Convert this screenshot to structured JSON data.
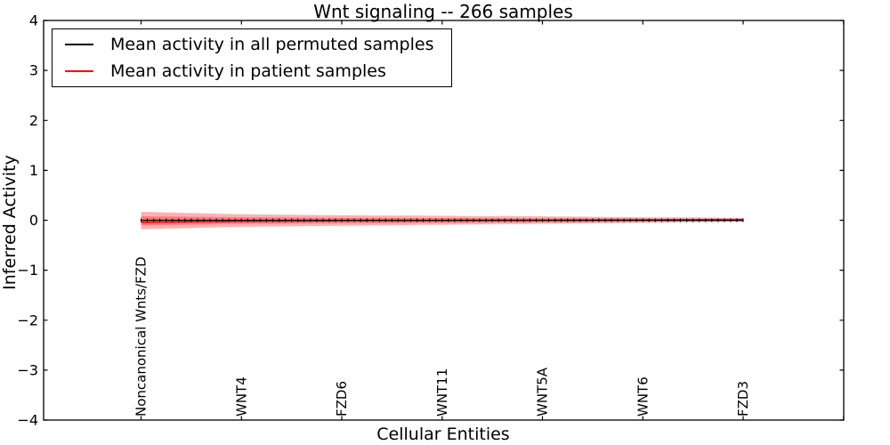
{
  "chart_data": {
    "type": "line",
    "title": "Wnt signaling -- 266 samples",
    "xlabel": "Cellular Entities",
    "ylabel": "Inferred Activity",
    "ylim": [
      -4,
      4
    ],
    "yticks": [
      4,
      3,
      2,
      1,
      0,
      -1,
      -2,
      -3,
      -4
    ],
    "grid": false,
    "n_points": 97,
    "control_indices": [
      0,
      16,
      32,
      48,
      64,
      80,
      96
    ],
    "xticks": {
      "indices": [
        0,
        16,
        32,
        48,
        64,
        80,
        96,
        112
      ],
      "labels": [
        "Noncanonical Wnts/FZD",
        "WNT4",
        "FZD6",
        "WNT11",
        "WNT5A",
        "WNT6",
        "FZD3",
        ""
      ]
    },
    "legend": {
      "position": "upper left",
      "items": [
        {
          "label": "Mean activity in all permuted samples",
          "color": "#000000"
        },
        {
          "label": "Mean activity in patient samples",
          "color": "#ff0000"
        }
      ]
    },
    "series": [
      {
        "name": "Mean activity in all permuted samples",
        "color": "#000000",
        "marker": "|",
        "values_at_controls": [
          0.0,
          0.0,
          0.0,
          0.0,
          0.0,
          0.0,
          0.0
        ]
      },
      {
        "name": "Mean activity in patient samples",
        "color": "#ff0000",
        "marker": null,
        "values_at_controls": [
          -0.04,
          -0.02,
          -0.01,
          -0.005,
          0.0,
          0.005,
          0.01
        ]
      }
    ],
    "bands": [
      {
        "name": "patient-spread-outer",
        "color": "#ff0000",
        "alpha": 0.3,
        "upper_at_controls": [
          0.17,
          0.12,
          0.1,
          0.09,
          0.08,
          0.06,
          0.05
        ],
        "lower_at_controls": [
          -0.18,
          -0.13,
          -0.11,
          -0.09,
          -0.07,
          -0.05,
          -0.03
        ]
      },
      {
        "name": "patient-spread-inner",
        "color": "#ff0000",
        "alpha": 0.3,
        "upper_at_controls": [
          0.08,
          0.06,
          0.05,
          0.045,
          0.04,
          0.035,
          0.03
        ],
        "lower_at_controls": [
          -0.1,
          -0.07,
          -0.06,
          -0.05,
          -0.04,
          -0.03,
          -0.02
        ]
      }
    ]
  },
  "colors": {
    "background": "#ffffff",
    "axis": "#000000",
    "text": "#000000",
    "permuted_line": "#000000",
    "patient_line": "#ff0000",
    "band_fill": "#ff0000"
  }
}
